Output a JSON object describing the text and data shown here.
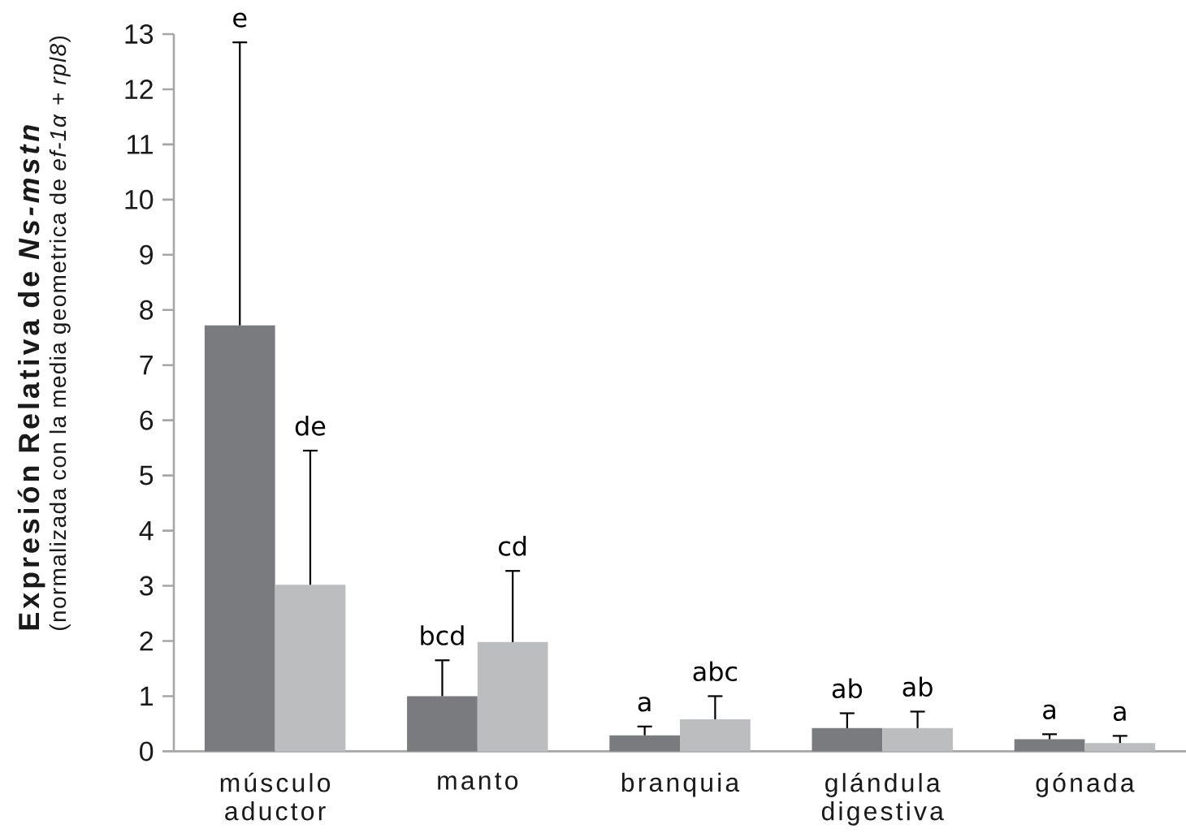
{
  "chart_data": {
    "type": "bar",
    "ylabel": "Expresión Relativa de *Ns-mstn*",
    "annotations": [
      "(normalizada con la media geometrica de *ef-1α* + *rpl8*)",
      "e",
      "de",
      "bcd",
      "cd",
      "a",
      "abc",
      "ab",
      "ab",
      "a",
      "a"
    ],
    "categories": [
      "músculo aductor",
      "manto",
      "branquia",
      "glándula digestiva",
      "gónada"
    ],
    "series": [
      {
        "color": "#7a7b7f",
        "values": [
          7.72,
          1.0,
          0.29,
          0.42,
          0.22
        ],
        "errors": [
          [
            7.72,
            12.85
          ],
          [
            1.0,
            1.65
          ],
          [
            0.29,
            0.45
          ],
          [
            0.42,
            0.69
          ],
          [
            0.22,
            0.31
          ]
        ]
      },
      {
        "color": "#bcbdbf",
        "values": [
          3.02,
          1.98,
          0.58,
          0.42,
          0.15
        ],
        "errors": [
          [
            3.02,
            5.45
          ],
          [
            1.98,
            3.27
          ],
          [
            0.58,
            1.0
          ],
          [
            0.42,
            0.72
          ],
          [
            0.15,
            0.28
          ]
        ]
      }
    ],
    "ylim": [
      0,
      13
    ],
    "yticks": [
      0,
      1,
      2,
      3,
      4,
      5,
      6,
      7,
      8,
      9,
      10,
      11,
      12,
      13
    ]
  }
}
